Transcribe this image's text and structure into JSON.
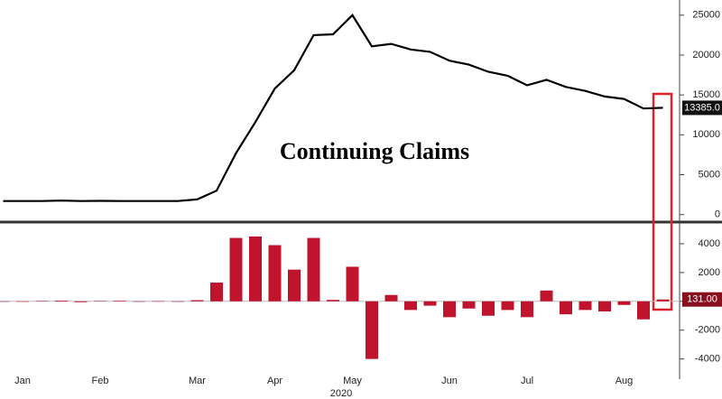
{
  "chart_data": [
    {
      "type": "line",
      "title": "Continuing Claims",
      "color": "#000000",
      "values": [
        1700,
        1700,
        1700,
        1750,
        1700,
        1720,
        1700,
        1700,
        1700,
        1700,
        1900,
        3000,
        7700,
        11600,
        15800,
        18100,
        22500,
        22600,
        25000,
        21100,
        21400,
        20700,
        20400,
        19300,
        18800,
        17900,
        17400,
        16200,
        16900,
        16000,
        15500,
        14800,
        14500,
        13300,
        13385
      ],
      "value_labels": [
        null,
        null,
        null,
        null,
        null,
        null,
        null,
        null,
        null,
        null,
        null,
        null,
        null,
        null,
        null,
        null,
        null,
        null,
        null,
        null,
        null,
        null,
        null,
        null,
        null,
        null,
        null,
        null,
        null,
        null,
        null,
        null,
        null,
        null,
        "13385.0"
      ],
      "ylim": [
        -600,
        26900
      ],
      "yticks": [
        0,
        5000,
        10000,
        15000,
        20000,
        25000
      ]
    },
    {
      "type": "bar",
      "color": "#c0142e",
      "xlabel": "2020",
      "categories": [
        null,
        "Jan",
        null,
        null,
        null,
        "Feb",
        null,
        null,
        null,
        null,
        "Mar",
        null,
        null,
        null,
        "Apr",
        null,
        null,
        null,
        "May",
        null,
        null,
        null,
        null,
        "Jun",
        null,
        null,
        null,
        "Jul",
        null,
        null,
        null,
        null,
        "Aug",
        null,
        null
      ],
      "values": [
        0,
        -20,
        30,
        50,
        -60,
        20,
        40,
        -20,
        10,
        0,
        80,
        1300,
        4400,
        4500,
        3900,
        2200,
        4400,
        100,
        2400,
        -4000,
        440,
        -600,
        -300,
        -1100,
        -500,
        -1000,
        -600,
        -1100,
        750,
        -900,
        -600,
        -700,
        -250,
        -1250,
        131
      ],
      "value_labels": [
        null,
        null,
        null,
        null,
        null,
        null,
        null,
        null,
        null,
        null,
        null,
        null,
        null,
        null,
        null,
        null,
        null,
        null,
        null,
        null,
        null,
        null,
        null,
        null,
        null,
        null,
        null,
        null,
        null,
        null,
        null,
        null,
        null,
        null,
        "131.00"
      ],
      "ylim": [
        -5400,
        5250
      ],
      "yticks": [
        -4000,
        -2000,
        0,
        2000,
        4000
      ]
    }
  ]
}
